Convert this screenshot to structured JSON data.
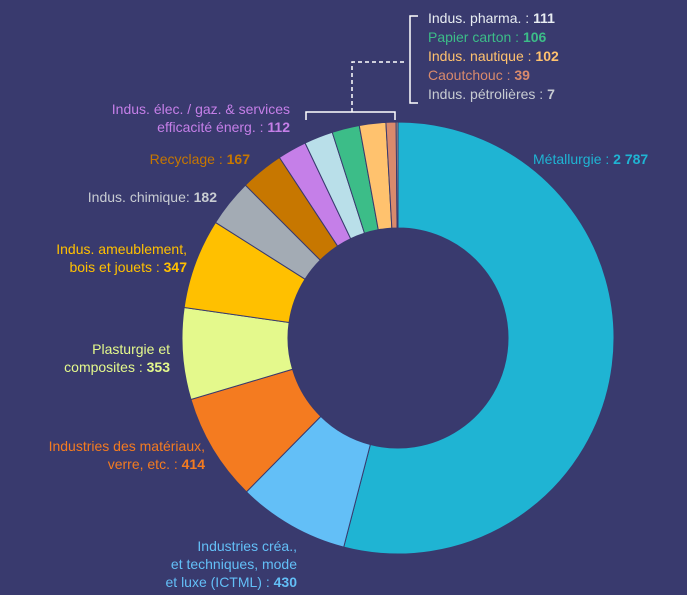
{
  "chart_data": {
    "type": "donut",
    "categories": [
      "Métallurgie : ",
      "Industries créa.,\net techniques, mode\net luxe (ICTML) : ",
      "Industries des matériaux,\nverre, etc. : ",
      "Plasturgie et\ncomposites : ",
      "Indus. ameublement,\nbois et jouets : ",
      "Indus. chimique: ",
      "Recyclage : ",
      "Indus. élec. / gaz. & services\nefficacité énerg. : ",
      "Indus. pharma. : ",
      "Papier carton : ",
      "Indus. nautique : ",
      "Caoutchouc : ",
      "Indus. pétrolières : "
    ],
    "values": [
      2787,
      430,
      414,
      353,
      347,
      182,
      167,
      112,
      111,
      106,
      102,
      39,
      7
    ],
    "value_labels": [
      "2 787",
      "430",
      "414",
      "353",
      "347",
      "182",
      "167",
      "112",
      "111",
      "106",
      "102",
      "39",
      "7"
    ],
    "colors": [
      "#1fb4d3",
      "#63bff7",
      "#f47b20",
      "#e4f98c",
      "#ffc000",
      "#a3abb4",
      "#c77700",
      "#c57fe8",
      "#b9dfe9",
      "#3cbd88",
      "#ffc26e",
      "#d98a6c",
      "#b9a88c"
    ],
    "label_colors": [
      "#1fb4d3",
      "#63bff7",
      "#f47b20",
      "#e4f98c",
      "#ffc000",
      "#c8ccd2",
      "#c77700",
      "#c57fe8",
      "#e8edf2",
      "#3cbd88",
      "#ffc26e",
      "#d98a6c",
      "#c8ccd2"
    ]
  }
}
